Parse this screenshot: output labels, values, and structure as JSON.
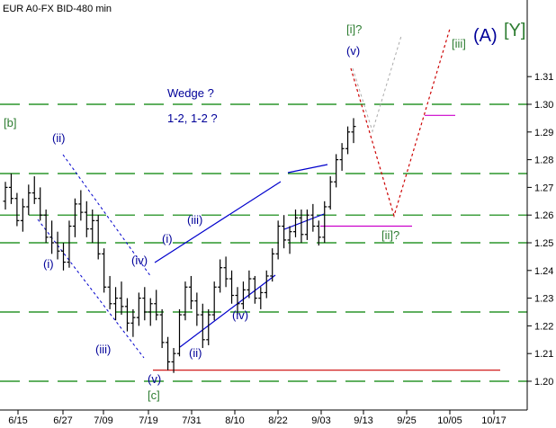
{
  "chart_data": {
    "type": "ohlc-bar",
    "title": "EUR A0-FX BID-480 min",
    "xlabel": "",
    "ylabel": "",
    "grid": true,
    "x_ticks": [
      "6/15",
      "6/27",
      "7/09",
      "7/19",
      "7/31",
      "8/10",
      "8/22",
      "9/03",
      "9/13",
      "9/25",
      "10/05",
      "10/17"
    ],
    "y_ticks": [
      "1.20",
      "1.21",
      "1.22",
      "1.23",
      "1.24",
      "1.25",
      "1.26",
      "1.27",
      "1.28",
      "1.29",
      "1.30",
      "1.31"
    ],
    "ylim": [
      1.196,
      1.313
    ],
    "dashed_levels": [
      1.2,
      1.225,
      1.25,
      1.26,
      1.275,
      1.3
    ],
    "support_line": 1.204,
    "magenta_levels": [
      1.256,
      1.296
    ],
    "colors": {
      "bars": "#000000",
      "grid": "#008000",
      "trend": "#0000cc",
      "projection_red": "#cc0000",
      "projection_gray": "#aaaaaa",
      "magenta": "#cc00cc",
      "support": "#cc0000",
      "label_blue": "#000099",
      "label_green": "#2e7d32"
    },
    "wave_labels": {
      "b": "[b]",
      "c": "[c]",
      "i_upper": "(i)",
      "ii_upper": "(ii)",
      "iii_upper": "(iii)",
      "iv_upper": "(iv)",
      "v_lower": "(v)",
      "i_mid": "(i)",
      "ii_mid": "(ii)",
      "iii_mid": "(iii)",
      "iv_mid": "(iv)",
      "v_top": "(v)",
      "i_top": "[i]?",
      "ii_proj": "[ii]?",
      "iii_proj": "[iii]",
      "A": "(A)",
      "Y": "[Y]"
    },
    "notes": [
      "Wedge ?",
      "1-2, 1-2 ?"
    ],
    "series": [
      {
        "name": "",
        "ohlc": [
          [
            1.265,
            1.272,
            1.262,
            1.27
          ],
          [
            1.27,
            1.275,
            1.264,
            1.266
          ],
          [
            1.266,
            1.268,
            1.256,
            1.258
          ],
          [
            1.258,
            1.266,
            1.254,
            1.263
          ],
          [
            1.263,
            1.271,
            1.26,
            1.268
          ],
          [
            1.268,
            1.274,
            1.264,
            1.266
          ],
          [
            1.266,
            1.27,
            1.258,
            1.26
          ],
          [
            1.26,
            1.262,
            1.25,
            1.252
          ],
          [
            1.252,
            1.258,
            1.246,
            1.25
          ],
          [
            1.25,
            1.254,
            1.244,
            1.247
          ],
          [
            1.247,
            1.25,
            1.24,
            1.243
          ],
          [
            1.243,
            1.258,
            1.241,
            1.256
          ],
          [
            1.256,
            1.266,
            1.252,
            1.264
          ],
          [
            1.264,
            1.269,
            1.258,
            1.261
          ],
          [
            1.261,
            1.265,
            1.252,
            1.255
          ],
          [
            1.255,
            1.262,
            1.25,
            1.258
          ],
          [
            1.258,
            1.26,
            1.244,
            1.246
          ],
          [
            1.246,
            1.248,
            1.232,
            1.234
          ],
          [
            1.234,
            1.238,
            1.226,
            1.228
          ],
          [
            1.228,
            1.234,
            1.222,
            1.23
          ],
          [
            1.23,
            1.236,
            1.224,
            1.227
          ],
          [
            1.227,
            1.23,
            1.218,
            1.221
          ],
          [
            1.221,
            1.226,
            1.216,
            1.223
          ],
          [
            1.223,
            1.232,
            1.22,
            1.23
          ],
          [
            1.23,
            1.234,
            1.222,
            1.225
          ],
          [
            1.225,
            1.23,
            1.22,
            1.228
          ],
          [
            1.228,
            1.233,
            1.222,
            1.224
          ],
          [
            1.224,
            1.226,
            1.212,
            1.214
          ],
          [
            1.214,
            1.216,
            1.204,
            1.207
          ],
          [
            1.207,
            1.212,
            1.203,
            1.21
          ],
          [
            1.21,
            1.226,
            1.209,
            1.224
          ],
          [
            1.224,
            1.236,
            1.222,
            1.234
          ],
          [
            1.234,
            1.238,
            1.226,
            1.229
          ],
          [
            1.229,
            1.232,
            1.22,
            1.224
          ],
          [
            1.224,
            1.228,
            1.212,
            1.215
          ],
          [
            1.215,
            1.226,
            1.213,
            1.224
          ],
          [
            1.224,
            1.236,
            1.222,
            1.234
          ],
          [
            1.234,
            1.244,
            1.232,
            1.241
          ],
          [
            1.241,
            1.245,
            1.234,
            1.237
          ],
          [
            1.237,
            1.24,
            1.228,
            1.231
          ],
          [
            1.231,
            1.234,
            1.224,
            1.228
          ],
          [
            1.228,
            1.236,
            1.226,
            1.233
          ],
          [
            1.233,
            1.24,
            1.23,
            1.237
          ],
          [
            1.237,
            1.238,
            1.228,
            1.23
          ],
          [
            1.23,
            1.234,
            1.226,
            1.232
          ],
          [
            1.232,
            1.24,
            1.23,
            1.238
          ],
          [
            1.238,
            1.248,
            1.236,
            1.246
          ],
          [
            1.246,
            1.258,
            1.244,
            1.256
          ],
          [
            1.256,
            1.26,
            1.248,
            1.251
          ],
          [
            1.251,
            1.256,
            1.246,
            1.254
          ],
          [
            1.254,
            1.262,
            1.252,
            1.259
          ],
          [
            1.259,
            1.262,
            1.25,
            1.253
          ],
          [
            1.253,
            1.262,
            1.251,
            1.26
          ],
          [
            1.26,
            1.264,
            1.254,
            1.256
          ],
          [
            1.256,
            1.258,
            1.249,
            1.252
          ],
          [
            1.252,
            1.265,
            1.25,
            1.263
          ],
          [
            1.263,
            1.274,
            1.262,
            1.272
          ],
          [
            1.272,
            1.282,
            1.27,
            1.28
          ],
          [
            1.28,
            1.286,
            1.276,
            1.284
          ],
          [
            1.284,
            1.292,
            1.282,
            1.29
          ],
          [
            1.29,
            1.295,
            1.286,
            1.292
          ]
        ]
      }
    ]
  }
}
